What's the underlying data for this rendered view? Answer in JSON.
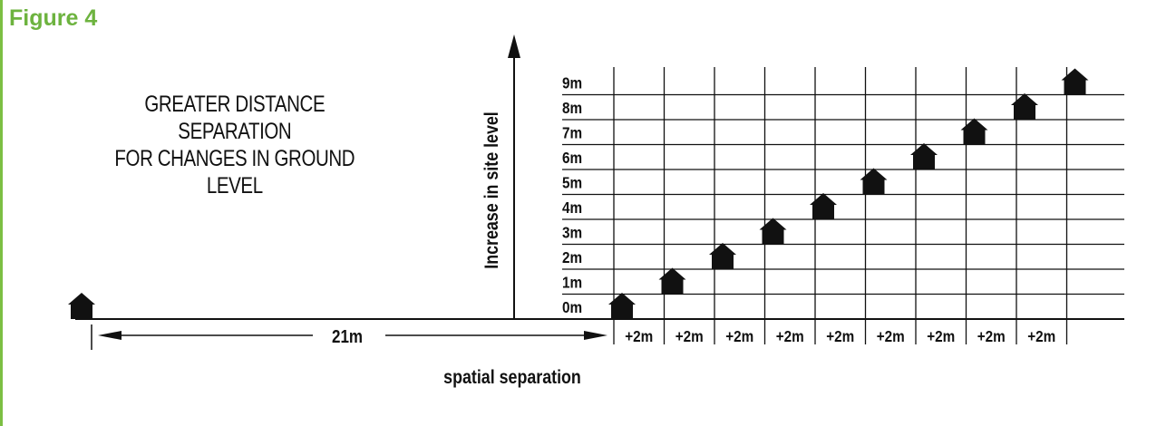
{
  "figure_label": "Figure 4",
  "heading": {
    "line1": "GREATER DISTANCE SEPARATION",
    "line2": "FOR CHANGES IN GROUND LEVEL"
  },
  "y_axis_title": "Increase in site level",
  "x_axis_title": "spatial separation",
  "base_distance_label": "21m",
  "level_labels": [
    "0m",
    "1m",
    "2m",
    "3m",
    "4m",
    "5m",
    "6m",
    "7m",
    "8m",
    "9m"
  ],
  "step_labels": [
    "+2m",
    "+2m",
    "+2m",
    "+2m",
    "+2m",
    "+2m",
    "+2m",
    "+2m",
    "+2m"
  ],
  "colors": {
    "accent": "#6db33f",
    "ink": "#111111"
  }
}
